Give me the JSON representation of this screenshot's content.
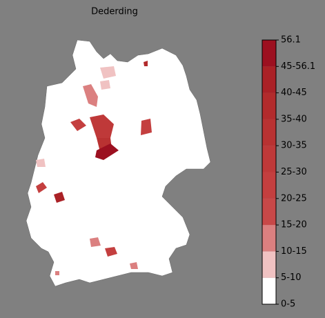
{
  "title": "Dederding",
  "legend": {
    "labels": [
      "0-5",
      "5-10",
      "10-15",
      "15-20",
      "20-25",
      "25-30",
      "30-35",
      "35-40",
      "40-45",
      "45-56.1",
      "56.1"
    ],
    "colors": [
      "#ffffff",
      "#f0c2c2",
      "#db8080",
      "#c84848",
      "#c43f3f",
      "#bf3939",
      "#b93232",
      "#b22b2c",
      "#aa2126",
      "#9c1020"
    ]
  }
}
